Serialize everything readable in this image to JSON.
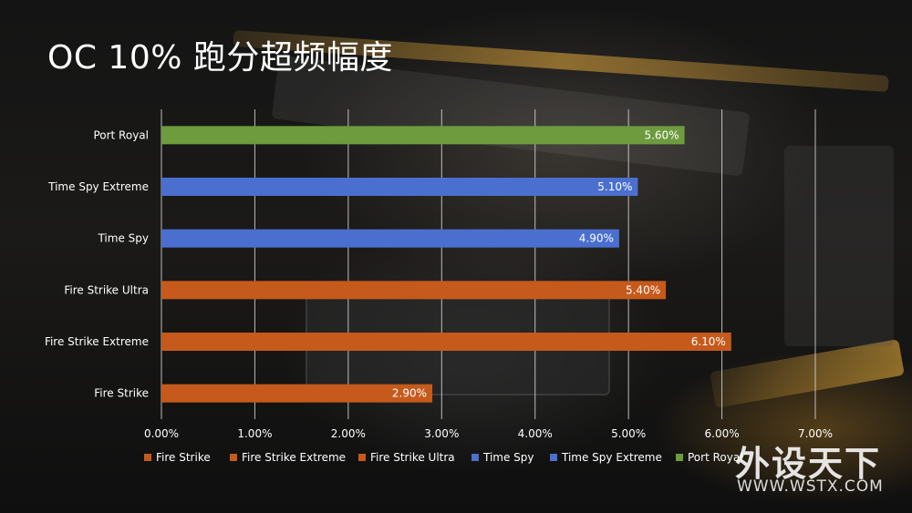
{
  "page_title": "OC 10% 跑分超频幅度",
  "watermark": {
    "brand": "外设天下",
    "url": "WWW.WSTX.COM"
  },
  "colors": {
    "orange": "#c55a1c",
    "blue": "#4a6fcf",
    "green": "#6d9b3e",
    "grid": "#d9d9d9",
    "text": "#ffffff"
  },
  "chart_data": {
    "type": "bar",
    "orientation": "horizontal",
    "title": "",
    "xlabel": "",
    "ylabel": "",
    "categories": [
      "Fire Strike",
      "Fire Strike Extreme",
      "Fire Strike Ultra",
      "Time Spy",
      "Time Spy Extreme",
      "Port Royal"
    ],
    "values": [
      2.9,
      6.1,
      5.4,
      4.9,
      5.1,
      5.6
    ],
    "value_labels": [
      "2.90%",
      "6.10%",
      "5.40%",
      "4.90%",
      "5.10%",
      "5.60%"
    ],
    "bar_colors": [
      "#c55a1c",
      "#c55a1c",
      "#c55a1c",
      "#4a6fcf",
      "#4a6fcf",
      "#6d9b3e"
    ],
    "xlim": [
      0,
      7
    ],
    "xticks": [
      0,
      1,
      2,
      3,
      4,
      5,
      6,
      7
    ],
    "xtick_labels": [
      "0.00%",
      "1.00%",
      "2.00%",
      "3.00%",
      "4.00%",
      "5.00%",
      "6.00%",
      "7.00%"
    ],
    "grid": true,
    "legend_position": "bottom",
    "legend": [
      {
        "name": "Fire Strike",
        "color": "#c55a1c"
      },
      {
        "name": "Fire Strike Extreme",
        "color": "#c55a1c"
      },
      {
        "name": "Fire Strike Ultra",
        "color": "#c55a1c"
      },
      {
        "name": "Time Spy",
        "color": "#4a6fcf"
      },
      {
        "name": "Time Spy Extreme",
        "color": "#4a6fcf"
      },
      {
        "name": "Port Royal",
        "color": "#6d9b3e"
      }
    ]
  }
}
